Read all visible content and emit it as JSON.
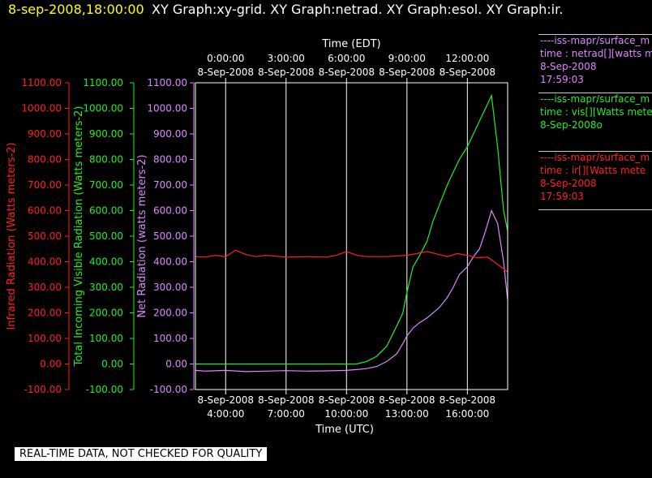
{
  "header": {
    "date": "8-sep-2008,18:00:00",
    "titles": "XY Graph:xy-grid.  XY Graph:netrad.  XY Graph:esol.  XY Graph:ir."
  },
  "legend": [
    {
      "lines": [
        "----iss-mapr/surface_m",
        "time : netrad[][watts m",
        "8-Sep-2008",
        "17:59:03"
      ],
      "color": "#dd88ff"
    },
    {
      "lines": [
        "----iss-mapr/surface_m",
        "time : vis[][Watts mete",
        "8-Sep-2008o"
      ],
      "color": "#22ee22"
    },
    {
      "lines": [
        "----iss-mapr/surface_m",
        "time : ir[][Watts mete",
        "8-Sep-2008",
        "17:59:03"
      ],
      "color": "#ff2020"
    }
  ],
  "footer": "REAL-TIME DATA, NOT CHECKED FOR QUALITY",
  "chart_data": {
    "type": "line",
    "top_axis_label": "Time (EDT)",
    "bottom_axis_label": "Time (UTC)",
    "top_ticks": [
      {
        "time": "0:00:00",
        "date": "8-Sep-2008"
      },
      {
        "time": "3:00:00",
        "date": "8-Sep-2008"
      },
      {
        "time": "6:00:00",
        "date": "8-Sep-2008"
      },
      {
        "time": "9:00:00",
        "date": "8-Sep-2008"
      },
      {
        "time": "12:00:00",
        "date": "8-Sep-2008"
      }
    ],
    "bottom_ticks": [
      {
        "date": "8-Sep-2008",
        "time": "4:00:00"
      },
      {
        "date": "8-Sep-2008",
        "time": "7:00:00"
      },
      {
        "date": "8-Sep-2008",
        "time": "10:00:00"
      },
      {
        "date": "8-Sep-2008",
        "time": "13:00:00"
      },
      {
        "date": "8-Sep-2008",
        "time": "16:00:00"
      }
    ],
    "x_range_utc_hours": [
      2.5,
      18.0
    ],
    "y_range": [
      -100,
      1100
    ],
    "y_ticks": [
      "-100.00",
      "0.00",
      "100.00",
      "200.00",
      "300.00",
      "400.00",
      "500.00",
      "600.00",
      "700.00",
      "800.00",
      "900.00",
      "1000.00",
      "1100.00"
    ],
    "y_axes": [
      {
        "label": "Infrared Radiation (Watts meters-2)",
        "color": "#ff2020"
      },
      {
        "label": "Total Incoming Visible Radiation (Watts meters-2)",
        "color": "#22ee22"
      },
      {
        "label": "Net Radiation (watts meters-2)",
        "color": "#dd88ff"
      }
    ],
    "grid": true,
    "series": [
      {
        "name": "time : netrad[][watts m",
        "color": "#dd88ff",
        "points": [
          [
            2.5,
            -25
          ],
          [
            3,
            -28
          ],
          [
            4,
            -25
          ],
          [
            5,
            -30
          ],
          [
            6,
            -28
          ],
          [
            7,
            -26
          ],
          [
            8,
            -28
          ],
          [
            9,
            -27
          ],
          [
            10,
            -25
          ],
          [
            10.5,
            -22
          ],
          [
            11,
            -18
          ],
          [
            11.5,
            -10
          ],
          [
            12,
            10
          ],
          [
            12.5,
            40
          ],
          [
            12.8,
            80
          ],
          [
            13,
            110
          ],
          [
            13.3,
            140
          ],
          [
            13.6,
            160
          ],
          [
            14,
            180
          ],
          [
            14.3,
            200
          ],
          [
            14.6,
            220
          ],
          [
            15,
            260
          ],
          [
            15.3,
            300
          ],
          [
            15.6,
            350
          ],
          [
            16,
            380
          ],
          [
            16.3,
            420
          ],
          [
            16.6,
            450
          ],
          [
            16.9,
            520
          ],
          [
            17.2,
            600
          ],
          [
            17.5,
            550
          ],
          [
            17.8,
            400
          ],
          [
            18,
            250
          ]
        ]
      },
      {
        "name": "time : vis[][Watts mete",
        "color": "#22ee22",
        "points": [
          [
            2.5,
            0
          ],
          [
            4,
            0
          ],
          [
            6,
            0
          ],
          [
            8,
            0
          ],
          [
            10,
            0
          ],
          [
            10.5,
            0
          ],
          [
            11,
            10
          ],
          [
            11.5,
            30
          ],
          [
            12,
            70
          ],
          [
            12.5,
            150
          ],
          [
            12.8,
            200
          ],
          [
            13,
            280
          ],
          [
            13.3,
            380
          ],
          [
            13.6,
            420
          ],
          [
            14,
            480
          ],
          [
            14.3,
            560
          ],
          [
            14.6,
            620
          ],
          [
            15,
            700
          ],
          [
            15.3,
            750
          ],
          [
            15.6,
            800
          ],
          [
            16,
            850
          ],
          [
            16.3,
            900
          ],
          [
            16.6,
            950
          ],
          [
            16.9,
            1000
          ],
          [
            17.2,
            1050
          ],
          [
            17.5,
            850
          ],
          [
            17.8,
            600
          ],
          [
            18,
            520
          ]
        ]
      },
      {
        "name": "time : ir[][Watts mete",
        "color": "#ff2020",
        "points": [
          [
            2.5,
            420
          ],
          [
            3,
            418
          ],
          [
            3.5,
            425
          ],
          [
            4,
            420
          ],
          [
            4.5,
            445
          ],
          [
            5,
            428
          ],
          [
            5.5,
            420
          ],
          [
            6,
            425
          ],
          [
            7,
            418
          ],
          [
            8,
            420
          ],
          [
            9,
            418
          ],
          [
            9.5,
            425
          ],
          [
            10,
            440
          ],
          [
            10.5,
            425
          ],
          [
            11,
            420
          ],
          [
            12,
            420
          ],
          [
            13,
            425
          ],
          [
            13.5,
            432
          ],
          [
            14,
            440
          ],
          [
            14.5,
            430
          ],
          [
            15,
            420
          ],
          [
            15.5,
            432
          ],
          [
            16,
            425
          ],
          [
            16.5,
            415
          ],
          [
            17,
            418
          ],
          [
            17.5,
            390
          ],
          [
            18,
            360
          ]
        ]
      }
    ]
  }
}
